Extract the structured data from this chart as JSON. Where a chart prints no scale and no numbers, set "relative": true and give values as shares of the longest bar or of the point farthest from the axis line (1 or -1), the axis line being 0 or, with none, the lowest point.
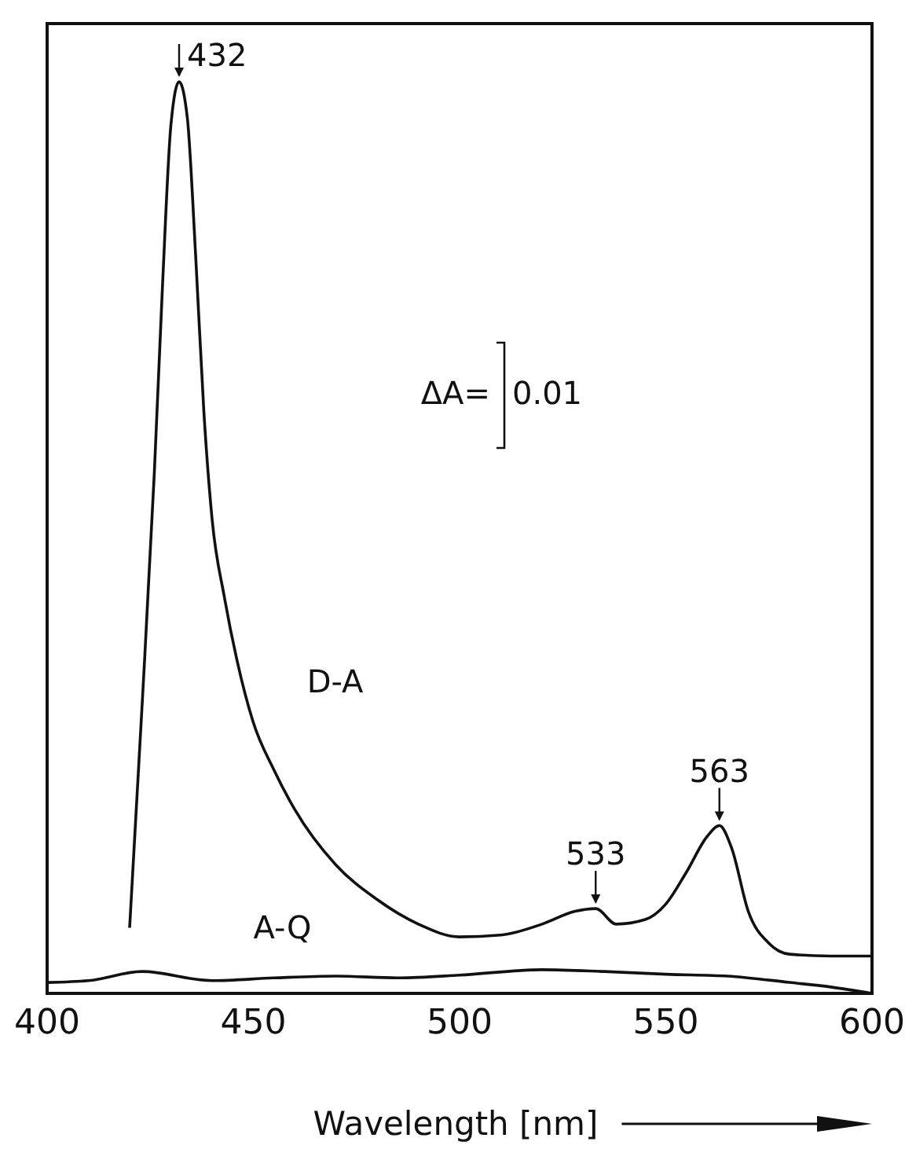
{
  "chart_data": {
    "type": "line",
    "relative": true,
    "xlabel": "Wavelength [nm]",
    "xlim": [
      400,
      600
    ],
    "xticks": [
      400,
      450,
      500,
      550,
      600
    ],
    "tick_labels": "x",
    "grid": false,
    "series": [
      {
        "name": "D-A",
        "color": "#111111",
        "x": [
          420,
          423,
          426,
          428,
          430,
          432,
          434,
          436,
          438,
          440,
          443,
          446,
          450,
          455,
          460,
          470,
          480,
          490,
          500,
          510,
          520,
          528,
          533,
          538,
          545,
          550,
          555,
          560,
          563,
          566,
          570,
          575,
          580,
          590,
          600
        ],
        "values": [
          0.072,
          0.314,
          0.572,
          0.779,
          0.952,
          1,
          0.96,
          0.81,
          0.638,
          0.52,
          0.434,
          0.366,
          0.297,
          0.245,
          0.202,
          0.141,
          0.103,
          0.076,
          0.062,
          0.064,
          0.076,
          0.09,
          0.093,
          0.076,
          0.081,
          0.098,
          0.133,
          0.172,
          0.184,
          0.159,
          0.09,
          0.055,
          0.043,
          0.041,
          0.041
        ]
      },
      {
        "name": "A-Q",
        "color": "#111111",
        "x": [
          400,
          410,
          423,
          440,
          455,
          470,
          485,
          500,
          520,
          535,
          550,
          565,
          580,
          590,
          600
        ],
        "values": [
          0.012,
          0.014,
          0.024,
          0.014,
          0.017,
          0.019,
          0.017,
          0.02,
          0.026,
          0.024,
          0.021,
          0.019,
          0.012,
          0.007,
          0
        ]
      }
    ],
    "annotations": [
      {
        "text": "432",
        "x": 432,
        "y": 1
      },
      {
        "text": "533",
        "x": 533,
        "y": 0.093
      },
      {
        "text": "563",
        "x": 563,
        "y": 0.184
      },
      "ΔA=",
      "0.01"
    ]
  }
}
